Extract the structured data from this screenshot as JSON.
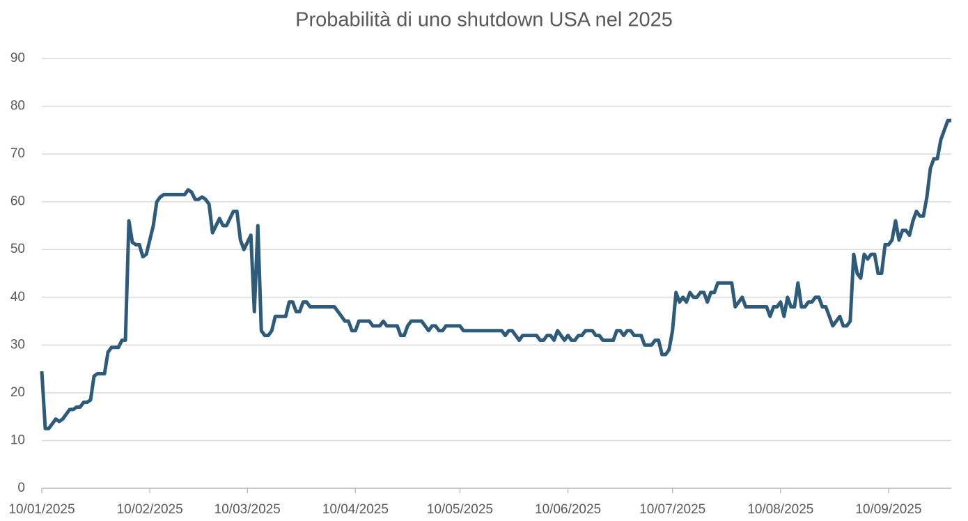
{
  "chart_data": {
    "type": "line",
    "title": "Probabilità di uno shutdown USA nel 2025",
    "x": [
      "2025-01-10",
      "2025-01-11",
      "2025-01-12",
      "2025-01-14",
      "2025-01-15",
      "2025-01-16",
      "2025-01-18",
      "2025-01-19",
      "2025-01-20",
      "2025-01-21",
      "2025-01-22",
      "2025-01-23",
      "2025-01-24",
      "2025-01-25",
      "2025-01-26",
      "2025-01-28",
      "2025-01-29",
      "2025-01-30",
      "2025-02-01",
      "2025-02-02",
      "2025-02-03",
      "2025-02-04",
      "2025-02-05",
      "2025-02-06",
      "2025-02-07",
      "2025-02-08",
      "2025-02-09",
      "2025-02-11",
      "2025-02-12",
      "2025-02-13",
      "2025-02-14",
      "2025-02-20",
      "2025-02-21",
      "2025-02-22",
      "2025-02-23",
      "2025-02-24",
      "2025-02-25",
      "2025-02-26",
      "2025-02-27",
      "2025-02-28",
      "2025-03-01",
      "2025-03-02",
      "2025-03-03",
      "2025-03-04",
      "2025-03-05",
      "2025-03-06",
      "2025-03-07",
      "2025-03-08",
      "2025-03-09",
      "2025-03-10",
      "2025-03-11",
      "2025-03-12",
      "2025-03-13",
      "2025-03-14",
      "2025-03-15",
      "2025-03-16",
      "2025-03-17",
      "2025-03-18",
      "2025-03-21",
      "2025-03-22",
      "2025-03-23",
      "2025-03-24",
      "2025-03-25",
      "2025-03-26",
      "2025-03-27",
      "2025-03-28",
      "2025-04-04",
      "2025-04-05",
      "2025-04-06",
      "2025-04-07",
      "2025-04-08",
      "2025-04-09",
      "2025-04-10",
      "2025-04-11",
      "2025-04-14",
      "2025-04-15",
      "2025-04-17",
      "2025-04-18",
      "2025-04-19",
      "2025-04-22",
      "2025-04-23",
      "2025-04-24",
      "2025-04-25",
      "2025-04-26",
      "2025-04-29",
      "2025-04-30",
      "2025-05-01",
      "2025-05-02",
      "2025-05-03",
      "2025-05-04",
      "2025-05-05",
      "2025-05-06",
      "2025-05-10",
      "2025-05-11",
      "2025-05-22",
      "2025-05-23",
      "2025-05-24",
      "2025-05-25",
      "2025-05-26",
      "2025-05-27",
      "2025-05-28",
      "2025-06-01",
      "2025-06-02",
      "2025-06-03",
      "2025-06-04",
      "2025-06-05",
      "2025-06-06",
      "2025-06-07",
      "2025-06-08",
      "2025-06-09",
      "2025-06-10",
      "2025-06-11",
      "2025-06-12",
      "2025-06-13",
      "2025-06-14",
      "2025-06-15",
      "2025-06-17",
      "2025-06-18",
      "2025-06-19",
      "2025-06-20",
      "2025-06-23",
      "2025-06-24",
      "2025-06-25",
      "2025-06-26",
      "2025-06-27",
      "2025-06-28",
      "2025-06-29",
      "2025-07-01",
      "2025-07-02",
      "2025-07-04",
      "2025-07-05",
      "2025-07-06",
      "2025-07-07",
      "2025-07-08",
      "2025-07-09",
      "2025-07-10",
      "2025-07-11",
      "2025-07-12",
      "2025-07-13",
      "2025-07-14",
      "2025-07-15",
      "2025-07-16",
      "2025-07-17",
      "2025-07-18",
      "2025-07-19",
      "2025-07-20",
      "2025-07-21",
      "2025-07-22",
      "2025-07-23",
      "2025-07-27",
      "2025-07-28",
      "2025-07-29",
      "2025-07-30",
      "2025-07-31",
      "2025-08-06",
      "2025-08-07",
      "2025-08-08",
      "2025-08-09",
      "2025-08-10",
      "2025-08-11",
      "2025-08-12",
      "2025-08-13",
      "2025-08-14",
      "2025-08-15",
      "2025-08-16",
      "2025-08-17",
      "2025-08-18",
      "2025-08-19",
      "2025-08-20",
      "2025-08-21",
      "2025-08-22",
      "2025-08-23",
      "2025-08-24",
      "2025-08-25",
      "2025-08-26",
      "2025-08-27",
      "2025-08-28",
      "2025-08-29",
      "2025-08-30",
      "2025-08-31",
      "2025-09-01",
      "2025-09-02",
      "2025-09-03",
      "2025-09-04",
      "2025-09-05",
      "2025-09-06",
      "2025-09-07",
      "2025-09-08",
      "2025-09-09",
      "2025-09-10",
      "2025-09-11",
      "2025-09-12",
      "2025-09-13",
      "2025-09-14",
      "2025-09-15",
      "2025-09-16",
      "2025-09-17",
      "2025-09-18",
      "2025-09-19",
      "2025-09-20",
      "2025-09-21",
      "2025-09-22",
      "2025-09-23",
      "2025-09-24",
      "2025-09-25",
      "2025-09-26",
      "2025-09-27",
      "2025-09-28"
    ],
    "series": [
      {
        "name": "Probabilità",
        "color": "#2e5b7a",
        "values": [
          24.5,
          12.5,
          12.5,
          14.5,
          14,
          14.5,
          16.5,
          16.5,
          17,
          17,
          18,
          18,
          18.5,
          23.5,
          24,
          24,
          28.5,
          29.5,
          29.5,
          31,
          31,
          56,
          51.5,
          51,
          51,
          48.5,
          49,
          55,
          60,
          61,
          61.5,
          61.5,
          62.5,
          62,
          60.5,
          60.5,
          61,
          60.5,
          59.5,
          53.5,
          55,
          56.5,
          55,
          55,
          56.5,
          58,
          58,
          52,
          50,
          51.5,
          53,
          37,
          55,
          33,
          32,
          32,
          33,
          36,
          36,
          39,
          39,
          37,
          37,
          39,
          39,
          38,
          38,
          37,
          36,
          35,
          35,
          33,
          33,
          35,
          35,
          34,
          34,
          35,
          34,
          34,
          32,
          32,
          34,
          35,
          35,
          34,
          33,
          34,
          34,
          33,
          33,
          34,
          34,
          33,
          33,
          32,
          33,
          33,
          32,
          31,
          32,
          32,
          31,
          31,
          32,
          32,
          31,
          33,
          32,
          31,
          32,
          31,
          31,
          32,
          32,
          33,
          33,
          32,
          32,
          31,
          31,
          33,
          33,
          32,
          33,
          33,
          32,
          32,
          30,
          30,
          31,
          31,
          28,
          28,
          29,
          33,
          41,
          39,
          40,
          39,
          41,
          40,
          40,
          41,
          41,
          39,
          41,
          41,
          43,
          43,
          38,
          39,
          40,
          38,
          38,
          36,
          38,
          38,
          39,
          36,
          40,
          38,
          38,
          43,
          38,
          38,
          39,
          39,
          40,
          40,
          38,
          38,
          36,
          34,
          35,
          36,
          34,
          34,
          35,
          49,
          45,
          44,
          49,
          48,
          49,
          49,
          45,
          45,
          51,
          51,
          52,
          56,
          52,
          54,
          54,
          53,
          56,
          58,
          57,
          57,
          61,
          67,
          69,
          69,
          73,
          75,
          77,
          77
        ]
      }
    ],
    "xlim": [
      "2025-01-10",
      "2025-09-28"
    ],
    "xticks": [
      {
        "value": "2025-01-10",
        "label": "10/01/2025"
      },
      {
        "value": "2025-02-10",
        "label": "10/02/2025"
      },
      {
        "value": "2025-03-10",
        "label": "10/03/2025"
      },
      {
        "value": "2025-04-10",
        "label": "10/04/2025"
      },
      {
        "value": "2025-05-10",
        "label": "10/05/2025"
      },
      {
        "value": "2025-06-10",
        "label": "10/06/2025"
      },
      {
        "value": "2025-07-10",
        "label": "10/07/2025"
      },
      {
        "value": "2025-08-10",
        "label": "10/08/2025"
      },
      {
        "value": "2025-09-10",
        "label": "10/09/2025"
      }
    ],
    "ylim": [
      0,
      90
    ],
    "yticks": [
      0,
      10,
      20,
      30,
      40,
      50,
      60,
      70,
      80,
      90
    ],
    "grid": true
  }
}
